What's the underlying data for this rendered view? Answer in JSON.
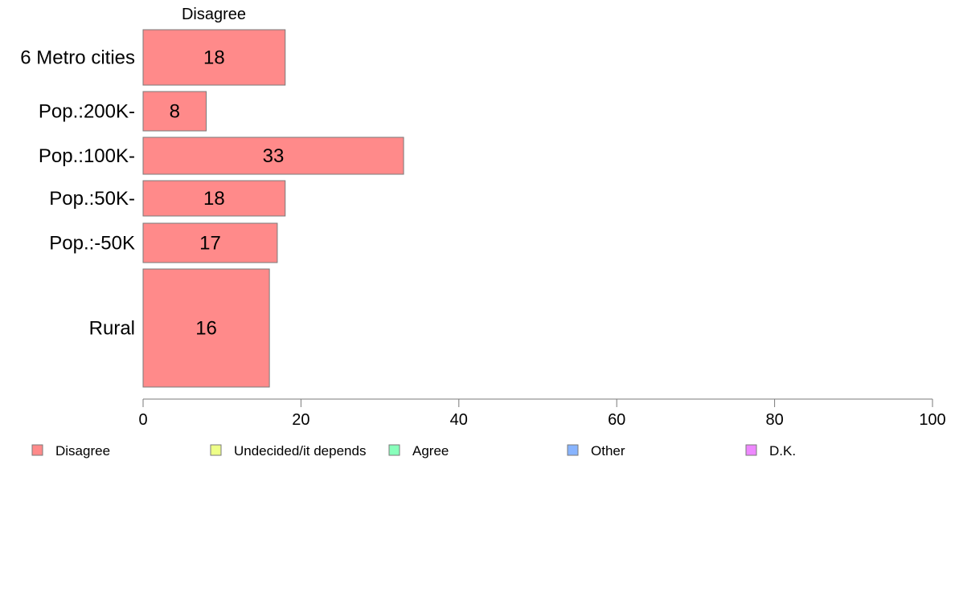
{
  "chart_data": {
    "type": "bar",
    "orientation": "horizontal",
    "column_header": "Disagree",
    "categories": [
      "6 Metro cities",
      "Pop.:200K-",
      "Pop.:100K-",
      "Pop.:50K-",
      "Pop.:-50K",
      "Rural"
    ],
    "series": [
      {
        "name": "Disagree",
        "color": "#ff8a8a",
        "values": [
          18,
          8,
          33,
          18,
          17,
          16
        ]
      }
    ],
    "data_labels": [
      "18",
      "8",
      "33",
      "18",
      "17",
      "16"
    ],
    "xlim": [
      0,
      100
    ],
    "x_ticks": [
      0,
      20,
      40,
      60,
      80,
      100
    ],
    "grid": false,
    "legend_position": "bottom",
    "legend": [
      {
        "label": "Disagree",
        "color": "#ff8a8a"
      },
      {
        "label": "Undecided/it depends",
        "color": "#eeff88"
      },
      {
        "label": "Agree",
        "color": "#88ffbb"
      },
      {
        "label": "Other",
        "color": "#88b4ff"
      },
      {
        "label": "D.K.",
        "color": "#ee88ff"
      }
    ]
  }
}
